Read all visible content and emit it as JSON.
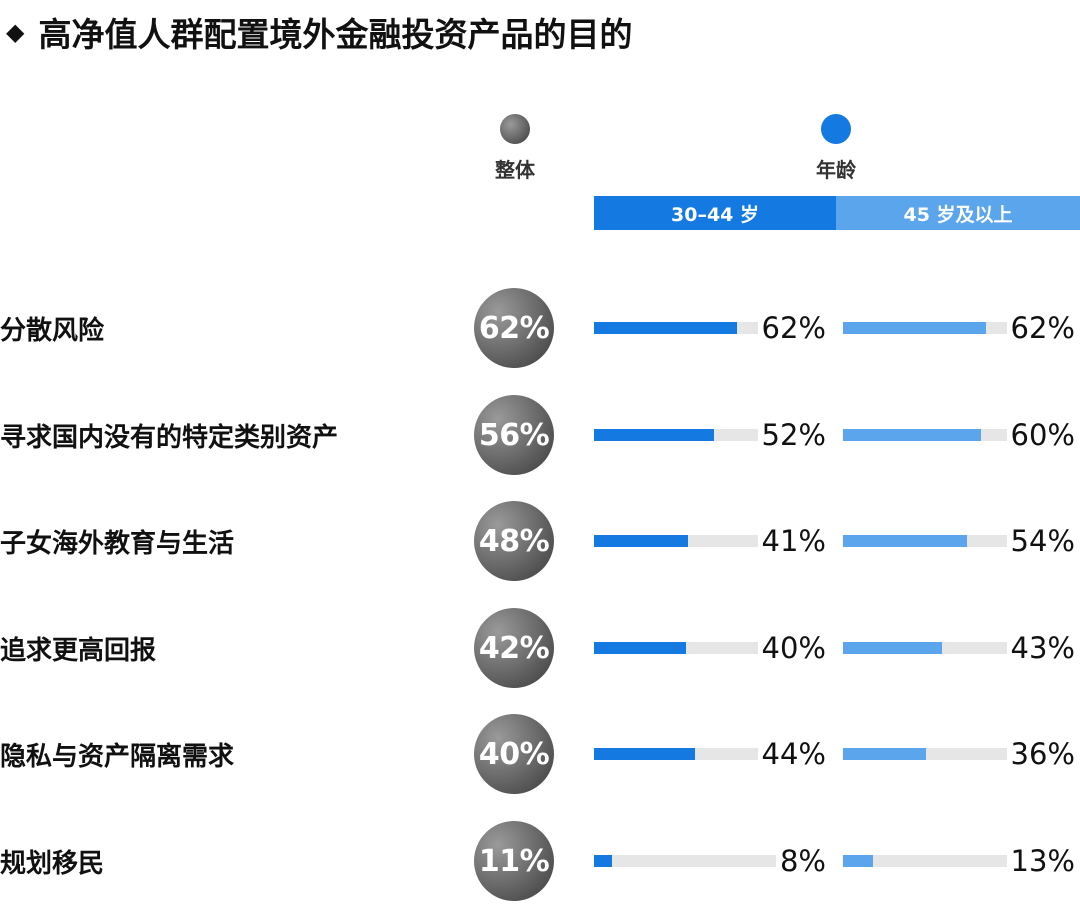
{
  "title": "高净值人群配置境外金融投资产品的目的",
  "title_marker": "◆",
  "legend": {
    "overall_label": "整体",
    "age_label": "年龄",
    "age_groups": [
      "30–44 岁",
      "45 岁及以上"
    ]
  },
  "colors": {
    "group1": "#1479e0",
    "group2": "#5aa5ec",
    "track": "#e6e6e6",
    "circle_dark": "#3a3a3a",
    "circle_light": "#9a9a9a"
  },
  "chart_data": {
    "type": "bar",
    "title": "高净值人群配置境外金融投资产品的目的",
    "categories": [
      "分散风险",
      "寻求国内没有的特定类别资产",
      "子女海外教育与生活",
      "追求更高回报",
      "隐私与资产隔离需求",
      "规划移民"
    ],
    "overall": [
      62,
      56,
      48,
      42,
      40,
      11
    ],
    "series": [
      {
        "name": "30–44 岁",
        "values": [
          62,
          52,
          41,
          40,
          44,
          8
        ]
      },
      {
        "name": "45 岁及以上",
        "values": [
          62,
          60,
          54,
          43,
          36,
          13
        ]
      }
    ],
    "unit": "%",
    "ylim": [
      0,
      100
    ]
  },
  "rows": [
    {
      "label": "分散风险",
      "overall": "62%",
      "g1": "62%",
      "g2": "62%"
    },
    {
      "label": "寻求国内没有的特定类别资产",
      "overall": "56%",
      "g1": "52%",
      "g2": "60%"
    },
    {
      "label": "子女海外教育与生活",
      "overall": "48%",
      "g1": "41%",
      "g2": "54%"
    },
    {
      "label": "追求更高回报",
      "overall": "42%",
      "g1": "40%",
      "g2": "43%"
    },
    {
      "label": "隐私与资产隔离需求",
      "overall": "40%",
      "g1": "44%",
      "g2": "36%"
    },
    {
      "label": "规划移民",
      "overall": "11%",
      "g1": "8%",
      "g2": "13%"
    }
  ]
}
